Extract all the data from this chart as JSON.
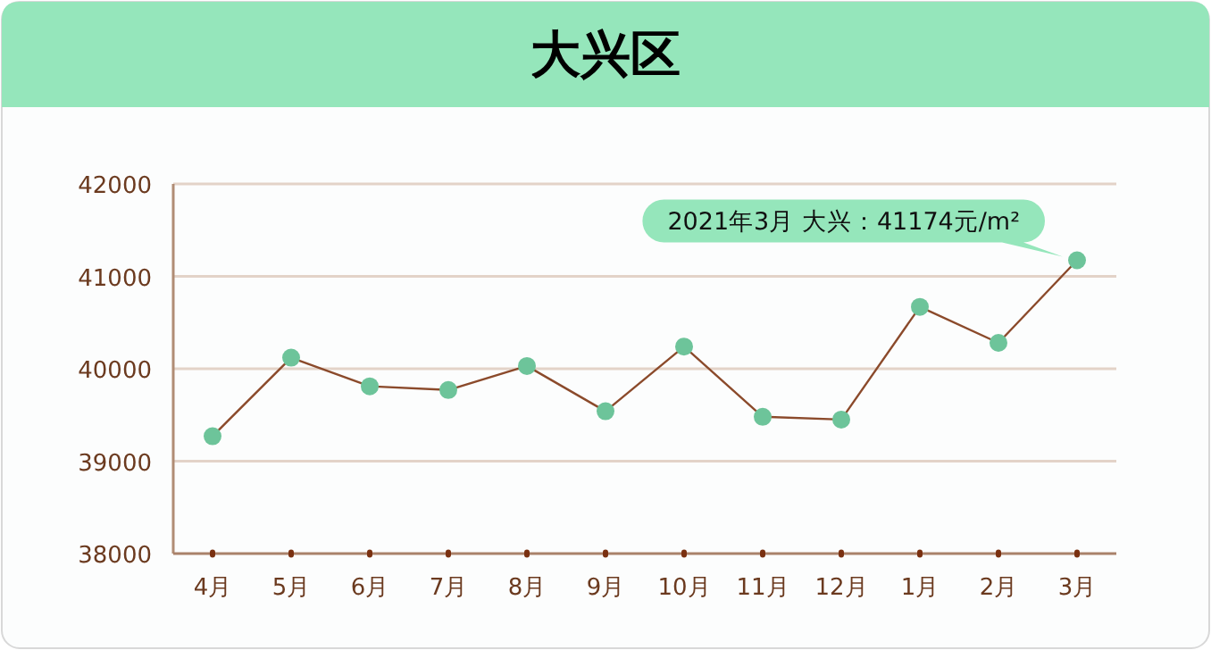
{
  "chart_data": {
    "type": "line",
    "title": "大兴区",
    "categories": [
      "4月",
      "5月",
      "6月",
      "7月",
      "8月",
      "9月",
      "10月",
      "11月",
      "12月",
      "1月",
      "2月",
      "3月"
    ],
    "series": [
      {
        "color": "#6dc49a",
        "values": [
          39270,
          40120,
          39810,
          39770,
          40030,
          39540,
          40240,
          39480,
          39450,
          40670,
          40280,
          41174
        ]
      }
    ],
    "ylim": [
      38000,
      42000
    ],
    "yticks": [
      38000,
      39000,
      40000,
      41000,
      42000
    ],
    "grid": "y",
    "marker": "circle",
    "annotations": [
      {
        "text": "2021年3月 大兴：41174元/m²",
        "x": "3月",
        "y": 41174
      }
    ]
  }
}
